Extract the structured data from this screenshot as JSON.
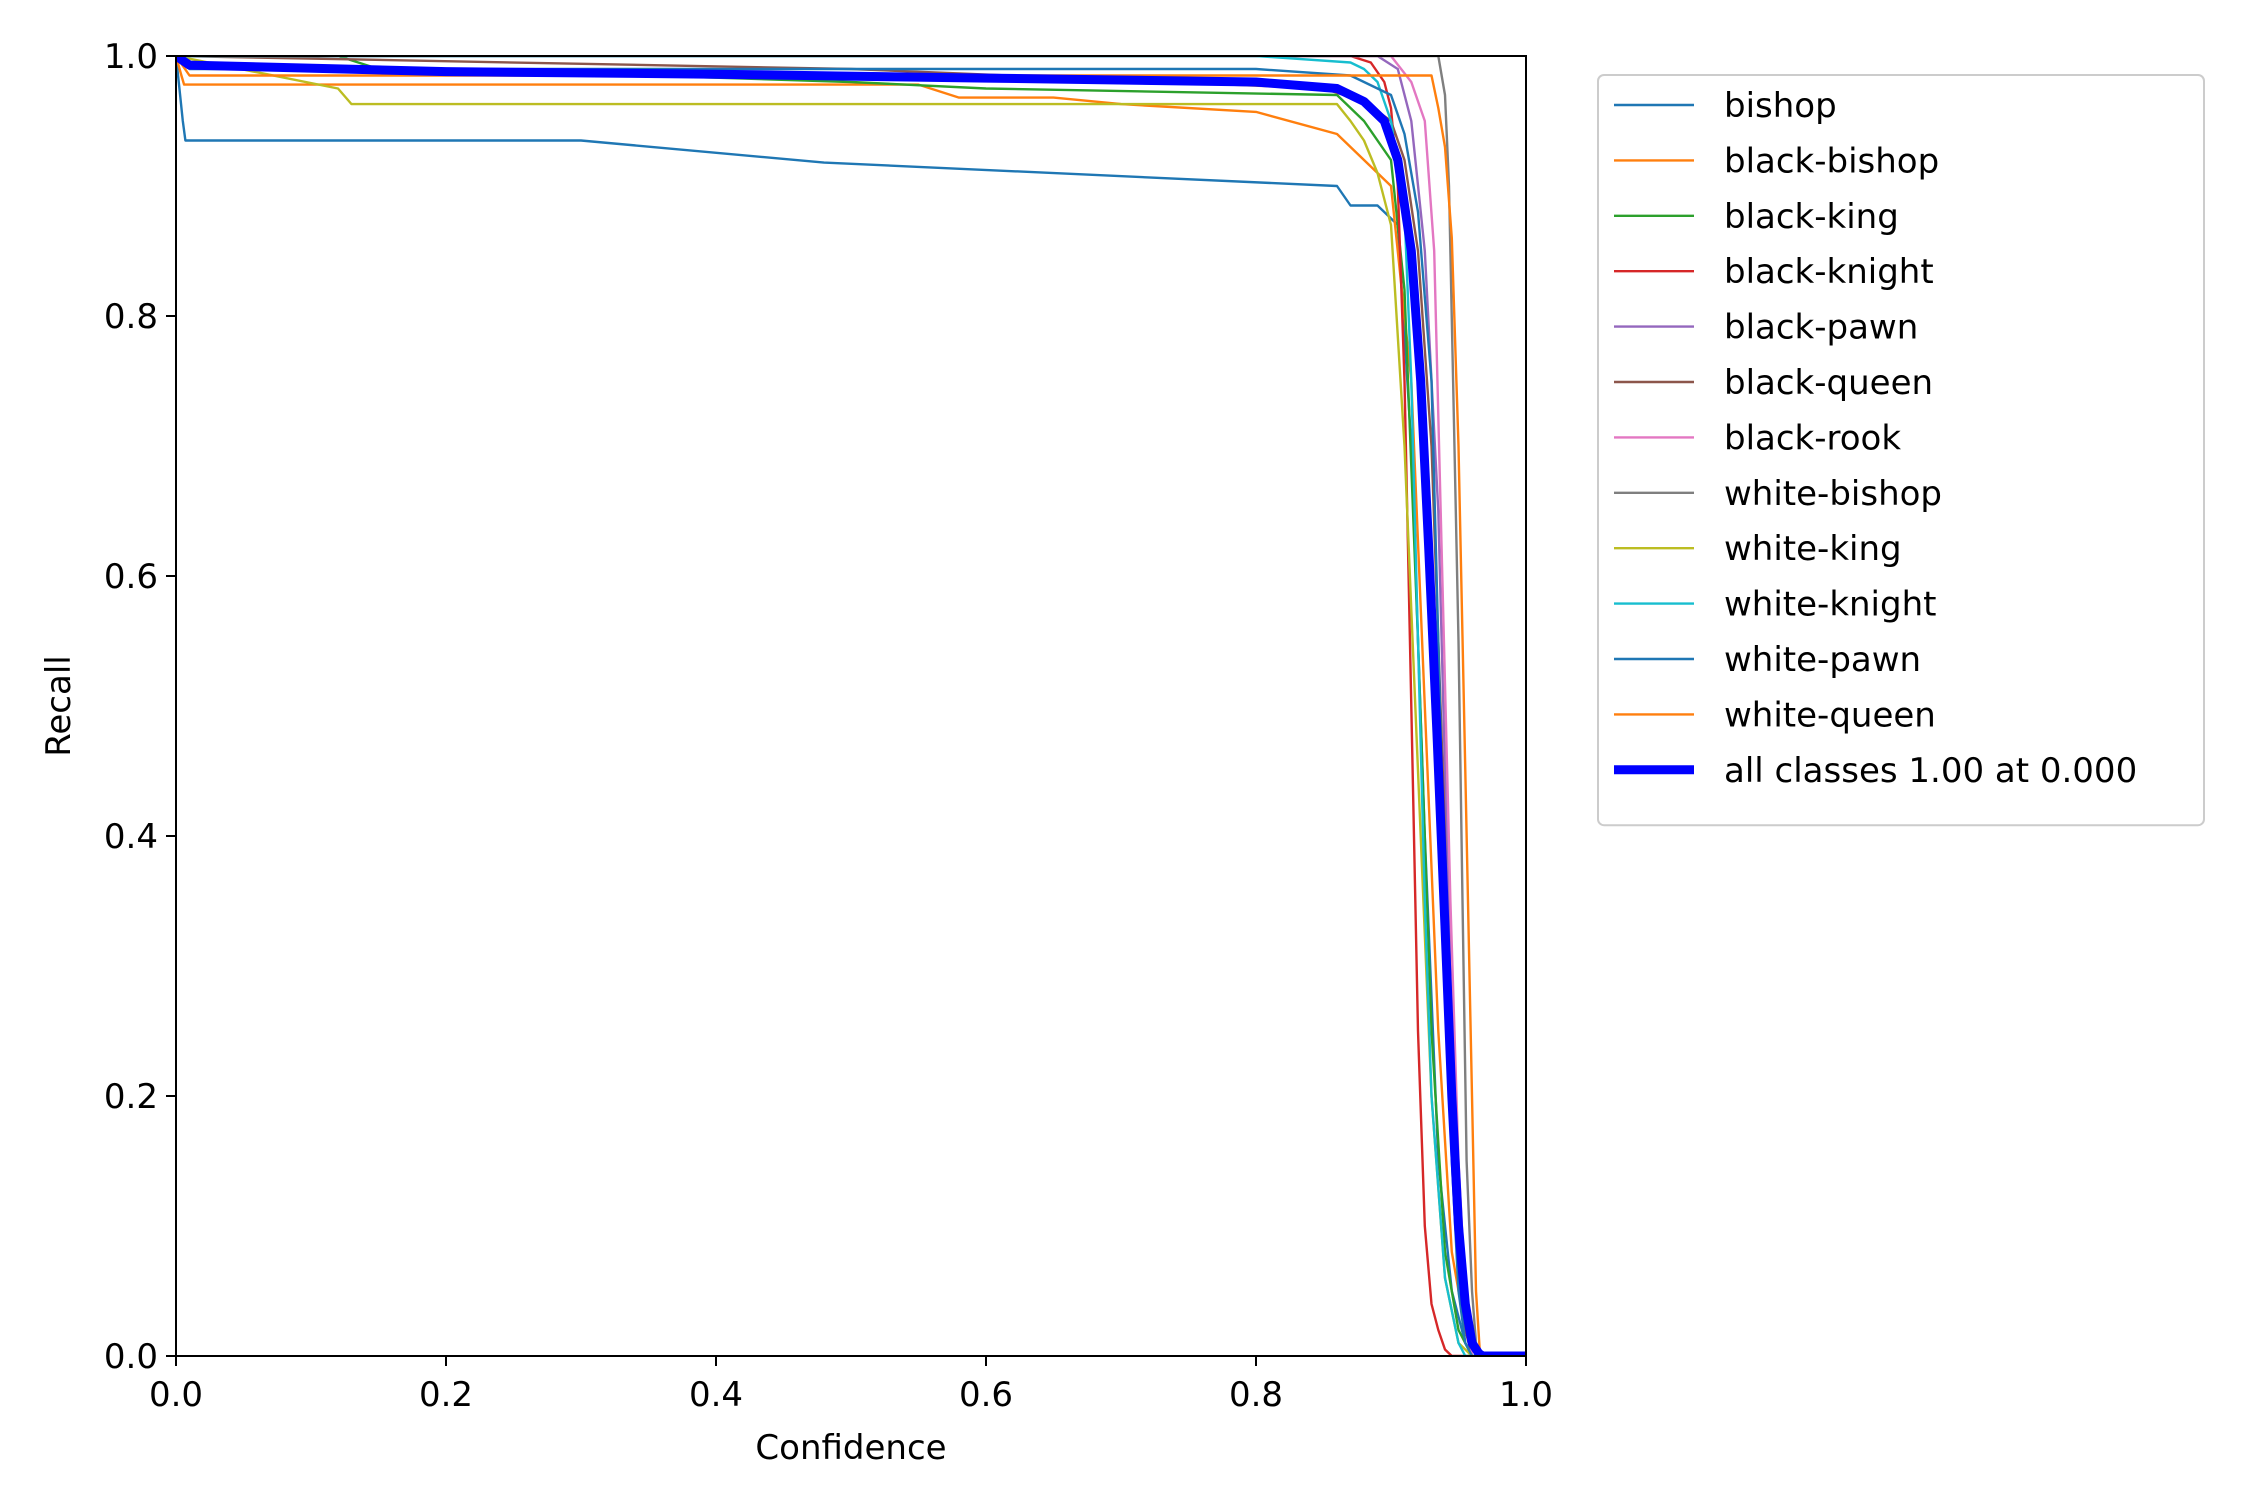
{
  "chart_data": {
    "type": "line",
    "title": "",
    "xlabel": "Confidence",
    "ylabel": "Recall",
    "xlim": [
      0,
      1
    ],
    "ylim": [
      0,
      1
    ],
    "xticks": [
      "0.0",
      "0.2",
      "0.4",
      "0.6",
      "0.8",
      "1.0"
    ],
    "yticks": [
      "0.0",
      "0.2",
      "0.4",
      "0.6",
      "0.8",
      "1.0"
    ],
    "grid": false,
    "legend_position": "outside-top-right",
    "series": [
      {
        "name": "bishop",
        "color": "#1f77b4",
        "width": "thin",
        "x": [
          0,
          0.003,
          0.005,
          0.007,
          0.3,
          0.48,
          0.86,
          0.87,
          0.89,
          0.905,
          0.915,
          0.925,
          0.935,
          0.945,
          0.955,
          0.96,
          1.0
        ],
        "y": [
          1.0,
          0.97,
          0.95,
          0.935,
          0.935,
          0.918,
          0.9,
          0.885,
          0.885,
          0.87,
          0.7,
          0.4,
          0.15,
          0.05,
          0.01,
          0,
          0
        ]
      },
      {
        "name": "black-bishop",
        "color": "#ff7f0e",
        "width": "thin",
        "x": [
          0,
          0.004,
          0.006,
          0.55,
          0.58,
          0.65,
          0.7,
          0.8,
          0.86,
          0.9,
          0.915,
          0.925,
          0.935,
          0.945,
          0.955,
          0.965,
          1.0
        ],
        "y": [
          1.0,
          0.985,
          0.978,
          0.978,
          0.968,
          0.968,
          0.963,
          0.957,
          0.94,
          0.9,
          0.75,
          0.5,
          0.25,
          0.08,
          0.02,
          0,
          0
        ]
      },
      {
        "name": "black-king",
        "color": "#2ca02c",
        "width": "thin",
        "x": [
          0,
          0.12,
          0.15,
          0.35,
          0.5,
          0.6,
          0.86,
          0.88,
          0.9,
          0.91,
          0.92,
          0.93,
          0.94,
          0.95,
          0.96,
          1.0
        ],
        "y": [
          1.0,
          1.0,
          0.99,
          0.985,
          0.98,
          0.975,
          0.97,
          0.95,
          0.92,
          0.82,
          0.55,
          0.25,
          0.08,
          0.02,
          0,
          0
        ]
      },
      {
        "name": "black-knight",
        "color": "#d62728",
        "width": "thin",
        "x": [
          0,
          0.5,
          0.87,
          0.885,
          0.895,
          0.9,
          0.905,
          0.91,
          0.915,
          0.92,
          0.925,
          0.93,
          0.935,
          0.94,
          0.945,
          1.0
        ],
        "y": [
          1.0,
          1.0,
          1.0,
          0.995,
          0.98,
          0.96,
          0.9,
          0.75,
          0.5,
          0.25,
          0.1,
          0.04,
          0.02,
          0.005,
          0,
          0
        ]
      },
      {
        "name": "black-pawn",
        "color": "#9467bd",
        "width": "thin",
        "x": [
          0,
          0.89,
          0.905,
          0.915,
          0.925,
          0.935,
          0.94,
          0.945,
          0.95,
          0.955,
          0.96,
          1.0
        ],
        "y": [
          1.0,
          1.0,
          0.99,
          0.95,
          0.85,
          0.65,
          0.45,
          0.25,
          0.1,
          0.03,
          0,
          0
        ]
      },
      {
        "name": "black-queen",
        "color": "#8c564b",
        "width": "thin",
        "x": [
          0,
          0.5,
          0.85,
          0.88,
          0.9,
          0.91,
          0.92,
          0.93,
          0.935,
          0.94,
          0.945,
          0.95,
          0.955,
          0.96,
          1.0
        ],
        "y": [
          1.0,
          0.99,
          0.975,
          0.965,
          0.95,
          0.92,
          0.85,
          0.7,
          0.55,
          0.4,
          0.2,
          0.08,
          0.02,
          0,
          0
        ]
      },
      {
        "name": "black-rook",
        "color": "#e377c2",
        "width": "thin",
        "x": [
          0,
          0.9,
          0.915,
          0.925,
          0.932,
          0.938,
          0.944,
          0.95,
          0.955,
          0.96,
          1.0
        ],
        "y": [
          1.0,
          1.0,
          0.98,
          0.95,
          0.85,
          0.6,
          0.35,
          0.15,
          0.05,
          0,
          0
        ]
      },
      {
        "name": "white-bishop",
        "color": "#7f7f7f",
        "width": "thin",
        "x": [
          0,
          0.935,
          0.94,
          0.943,
          0.946,
          0.95,
          0.953,
          0.956,
          0.96,
          0.963,
          0.966,
          1.0
        ],
        "y": [
          1.0,
          1.0,
          0.97,
          0.9,
          0.75,
          0.55,
          0.35,
          0.15,
          0.05,
          0.01,
          0,
          0
        ]
      },
      {
        "name": "white-king",
        "color": "#bcbd22",
        "width": "thin",
        "x": [
          0,
          0.12,
          0.13,
          0.86,
          0.87,
          0.88,
          0.89,
          0.9,
          0.91,
          0.92,
          0.93,
          0.94,
          0.95,
          0.96,
          1.0
        ],
        "y": [
          1.0,
          0.975,
          0.963,
          0.963,
          0.95,
          0.935,
          0.91,
          0.87,
          0.7,
          0.45,
          0.2,
          0.06,
          0.01,
          0,
          0
        ]
      },
      {
        "name": "white-knight",
        "color": "#17becf",
        "width": "thin",
        "x": [
          0,
          0.6,
          0.8,
          0.87,
          0.88,
          0.89,
          0.9,
          0.91,
          0.915,
          0.92,
          0.925,
          0.93,
          0.94,
          0.95,
          0.955,
          1.0
        ],
        "y": [
          1.0,
          1.0,
          1.0,
          0.995,
          0.99,
          0.98,
          0.95,
          0.88,
          0.75,
          0.55,
          0.35,
          0.2,
          0.06,
          0.01,
          0,
          0
        ]
      },
      {
        "name": "white-pawn",
        "color": "#1f77b4",
        "width": "thin",
        "x": [
          0,
          0.01,
          0.6,
          0.8,
          0.87,
          0.9,
          0.91,
          0.92,
          0.93,
          0.935,
          0.94,
          0.945,
          0.95,
          0.955,
          0.96,
          1.0
        ],
        "y": [
          1.0,
          0.99,
          0.99,
          0.99,
          0.985,
          0.97,
          0.94,
          0.88,
          0.75,
          0.55,
          0.35,
          0.15,
          0.05,
          0.01,
          0,
          0
        ]
      },
      {
        "name": "white-queen",
        "color": "#ff7f0e",
        "width": "thin",
        "x": [
          0,
          0.01,
          0.92,
          0.93,
          0.935,
          0.94,
          0.945,
          0.95,
          0.955,
          0.96,
          0.963,
          0.966,
          1.0
        ],
        "y": [
          1.0,
          0.985,
          0.985,
          0.985,
          0.96,
          0.93,
          0.86,
          0.7,
          0.45,
          0.2,
          0.05,
          0,
          0
        ]
      },
      {
        "name": "all classes 1.00 at 0.000",
        "color": "#0000ff",
        "width": "thick",
        "x": [
          0,
          0.01,
          0.2,
          0.4,
          0.6,
          0.8,
          0.86,
          0.88,
          0.895,
          0.905,
          0.915,
          0.922,
          0.928,
          0.934,
          0.94,
          0.945,
          0.95,
          0.955,
          0.96,
          0.965,
          0.968,
          1.0
        ],
        "y": [
          1.0,
          0.993,
          0.988,
          0.986,
          0.983,
          0.98,
          0.975,
          0.965,
          0.95,
          0.92,
          0.85,
          0.75,
          0.62,
          0.48,
          0.33,
          0.2,
          0.1,
          0.04,
          0.01,
          0.002,
          0,
          0
        ]
      }
    ]
  }
}
